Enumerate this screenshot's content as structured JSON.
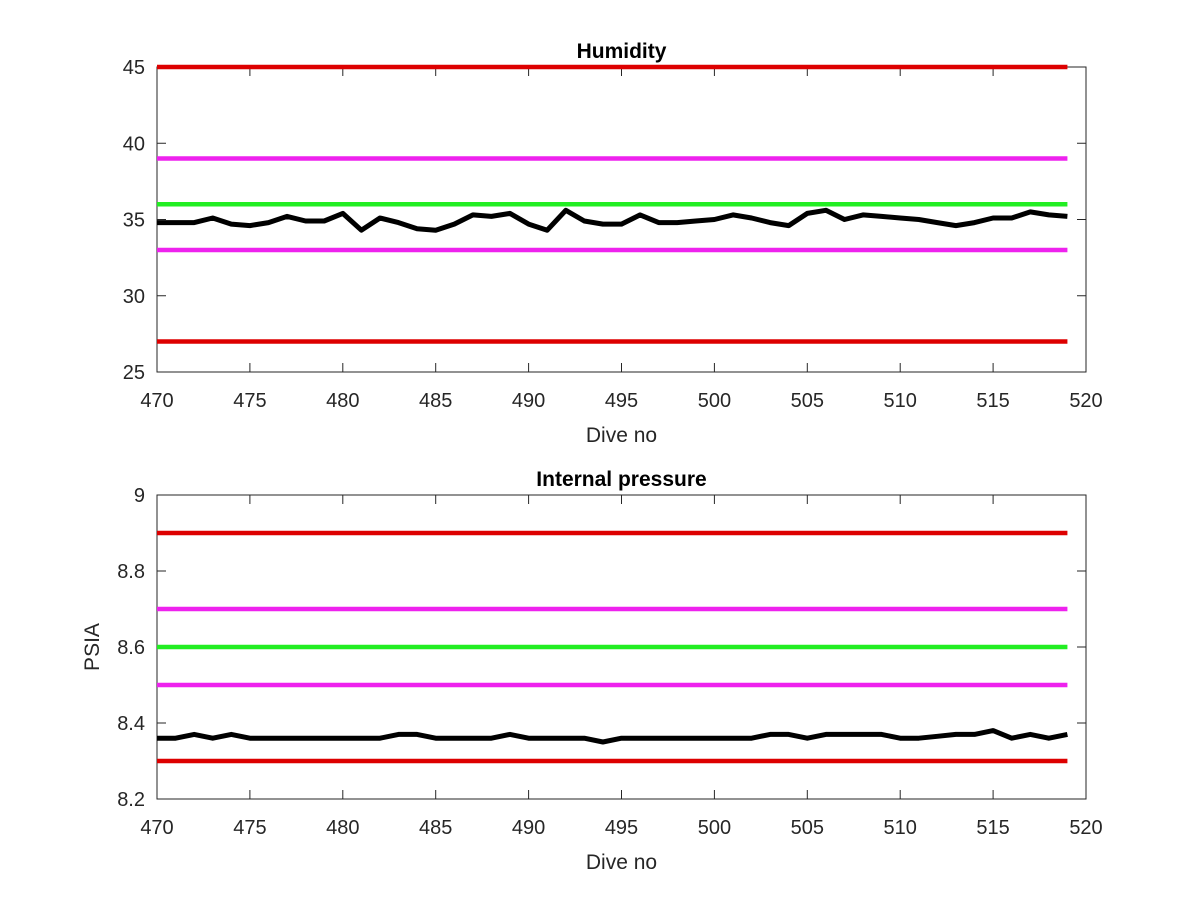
{
  "colors": {
    "red": "#dd0000",
    "magenta": "#ee22ee",
    "green": "#22ee22",
    "black": "#000000"
  },
  "chart_data": [
    {
      "type": "line",
      "title": "Humidity",
      "xlabel": "Dive no",
      "ylabel": "",
      "xlim": [
        470,
        520
      ],
      "ylim": [
        25,
        45
      ],
      "xticks": [
        470,
        475,
        480,
        485,
        490,
        495,
        500,
        505,
        510,
        515,
        520
      ],
      "yticks": [
        25,
        30,
        35,
        40,
        45
      ],
      "grid": false,
      "reference_lines": [
        {
          "y": 45,
          "color": "red"
        },
        {
          "y": 39,
          "color": "magenta"
        },
        {
          "y": 36,
          "color": "green"
        },
        {
          "y": 33,
          "color": "magenta"
        },
        {
          "y": 27,
          "color": "red"
        }
      ],
      "reference_x_range": [
        470,
        519
      ],
      "series": [
        {
          "color": "black",
          "x": [
            470,
            471,
            472,
            473,
            474,
            475,
            476,
            477,
            478,
            479,
            480,
            481,
            482,
            483,
            484,
            485,
            486,
            487,
            488,
            489,
            490,
            491,
            492,
            493,
            494,
            495,
            496,
            497,
            498,
            499,
            500,
            501,
            502,
            503,
            504,
            505,
            506,
            507,
            508,
            509,
            510,
            511,
            512,
            513,
            514,
            515,
            516,
            517,
            518,
            519
          ],
          "y": [
            34.8,
            34.8,
            34.8,
            35.1,
            34.7,
            34.6,
            34.8,
            35.2,
            34.9,
            34.9,
            35.4,
            34.3,
            35.1,
            34.8,
            34.4,
            34.3,
            34.7,
            35.3,
            35.2,
            35.4,
            34.7,
            34.3,
            35.6,
            34.9,
            34.7,
            34.7,
            35.3,
            34.8,
            34.8,
            34.9,
            35.0,
            35.3,
            35.1,
            34.8,
            34.6,
            35.4,
            35.6,
            35.0,
            35.3,
            35.2,
            35.1,
            35.0,
            34.8,
            34.6,
            34.8,
            35.1,
            35.1,
            35.5,
            35.3,
            35.2
          ]
        }
      ]
    },
    {
      "type": "line",
      "title": "Internal pressure",
      "xlabel": "Dive no",
      "ylabel": "PSIA",
      "xlim": [
        470,
        520
      ],
      "ylim": [
        8.2,
        9
      ],
      "xticks": [
        470,
        475,
        480,
        485,
        490,
        495,
        500,
        505,
        510,
        515,
        520
      ],
      "yticks": [
        8.2,
        8.4,
        8.6,
        8.8,
        9
      ],
      "ytick_labels": [
        "8.2",
        "8.4",
        "8.6",
        "8.8",
        "9"
      ],
      "grid": false,
      "reference_lines": [
        {
          "y": 8.9,
          "color": "red"
        },
        {
          "y": 8.7,
          "color": "magenta"
        },
        {
          "y": 8.6,
          "color": "green"
        },
        {
          "y": 8.5,
          "color": "magenta"
        },
        {
          "y": 8.3,
          "color": "red"
        }
      ],
      "reference_x_range": [
        470,
        519
      ],
      "series": [
        {
          "color": "black",
          "x": [
            470,
            471,
            472,
            473,
            474,
            475,
            476,
            477,
            478,
            479,
            480,
            481,
            482,
            483,
            484,
            485,
            486,
            487,
            488,
            489,
            490,
            491,
            492,
            493,
            494,
            495,
            496,
            497,
            498,
            499,
            500,
            501,
            502,
            503,
            504,
            505,
            506,
            507,
            508,
            509,
            510,
            511,
            512,
            513,
            514,
            515,
            516,
            517,
            518,
            519
          ],
          "y": [
            8.36,
            8.36,
            8.37,
            8.36,
            8.37,
            8.36,
            8.36,
            8.36,
            8.36,
            8.36,
            8.36,
            8.36,
            8.36,
            8.37,
            8.37,
            8.36,
            8.36,
            8.36,
            8.36,
            8.37,
            8.36,
            8.36,
            8.36,
            8.36,
            8.35,
            8.36,
            8.36,
            8.36,
            8.36,
            8.36,
            8.36,
            8.36,
            8.36,
            8.37,
            8.37,
            8.36,
            8.37,
            8.37,
            8.37,
            8.37,
            8.36,
            8.36,
            8.365,
            8.37,
            8.37,
            8.38,
            8.36,
            8.37,
            8.36,
            8.37
          ]
        }
      ]
    }
  ]
}
